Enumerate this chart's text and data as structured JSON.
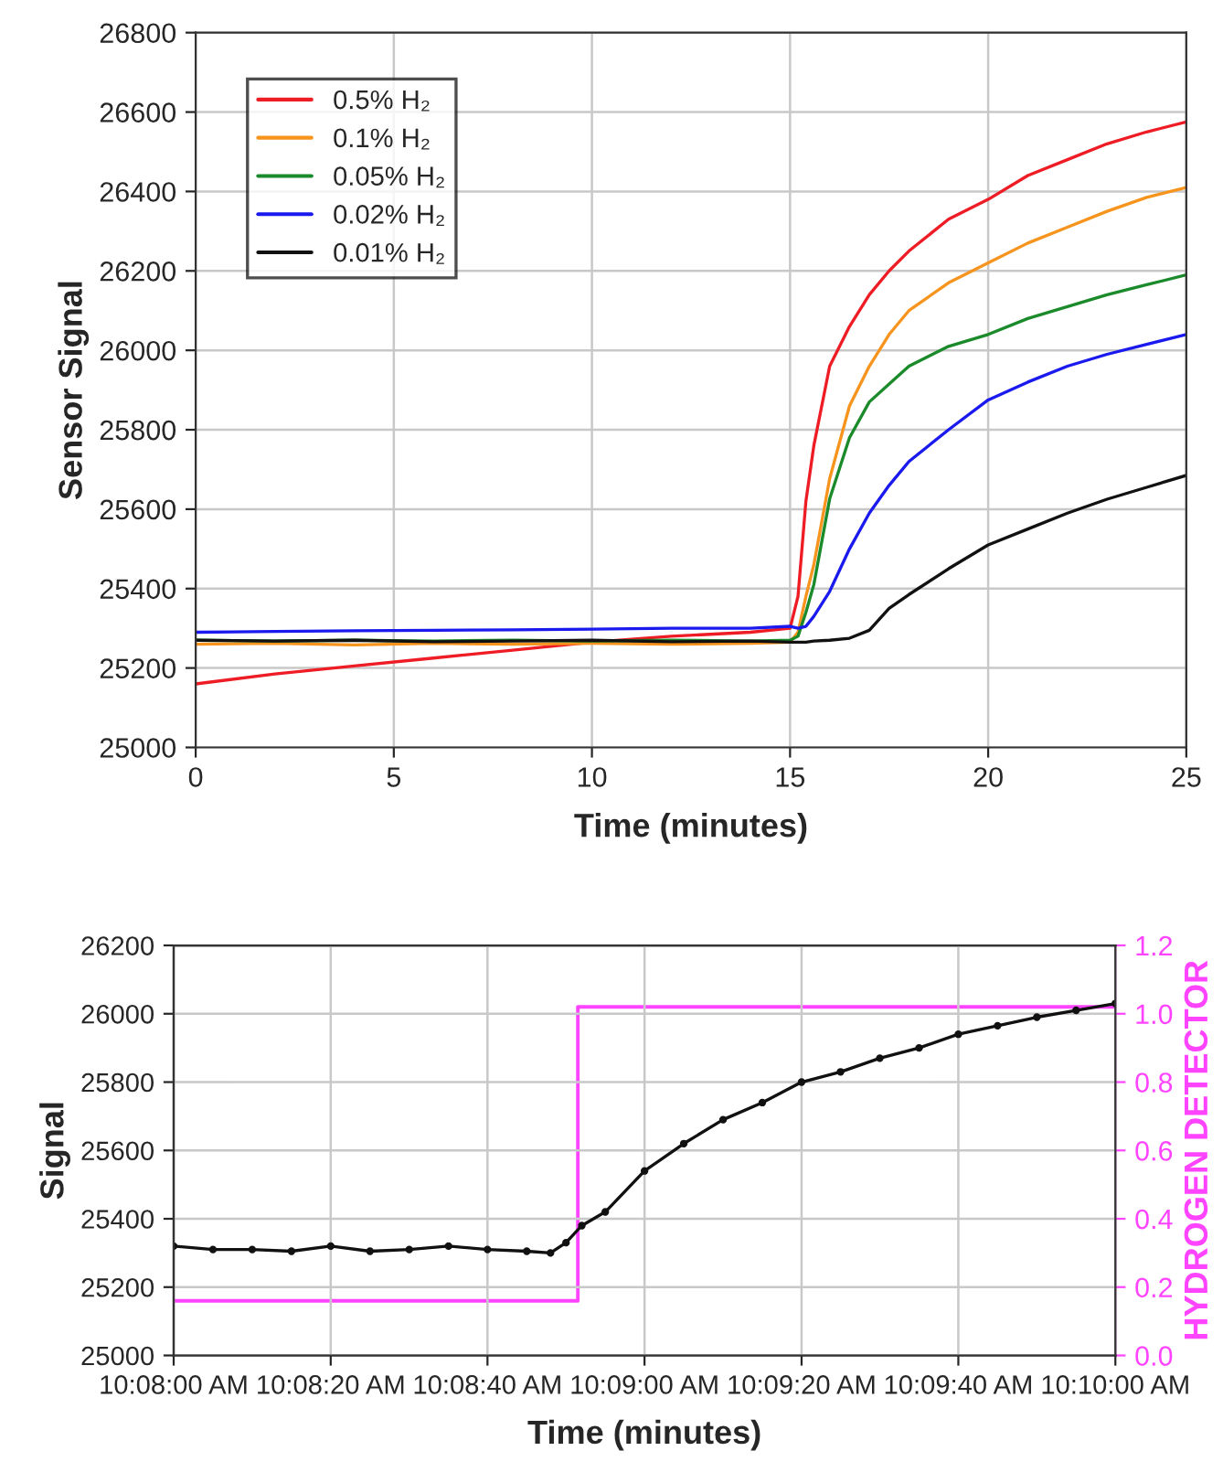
{
  "chart_data": [
    {
      "type": "line",
      "xlabel": "Time (minutes)",
      "ylabel": "Sensor Signal",
      "xlim": [
        0,
        25
      ],
      "ylim": [
        25000,
        26800
      ],
      "xticks": [
        0,
        5,
        10,
        15,
        20,
        25
      ],
      "yticks": [
        25000,
        25200,
        25400,
        25600,
        25800,
        26000,
        26200,
        26400,
        26600,
        26800
      ],
      "grid": true,
      "legend": "top left",
      "marker": "none",
      "line_style": "solid",
      "x": [
        0,
        2,
        4,
        6,
        8,
        10,
        12,
        14,
        15,
        15.2,
        15.4,
        15.6,
        16,
        16.5,
        17,
        17.5,
        18,
        19,
        20,
        21,
        22,
        23,
        24,
        25
      ],
      "series": [
        {
          "name": "0.5% H₂",
          "color": "#ee1c24",
          "values": [
            25160,
            25185,
            25205,
            25225,
            25245,
            25265,
            25280,
            25290,
            25300,
            25380,
            25620,
            25760,
            25960,
            26060,
            26140,
            26200,
            26250,
            26330,
            26380,
            26440,
            26480,
            26520,
            26550,
            26575
          ]
        },
        {
          "name": "0.1% H₂",
          "color": "#f7941d",
          "values": [
            25260,
            25262,
            25258,
            25262,
            25260,
            25262,
            25260,
            25262,
            25265,
            25290,
            25380,
            25460,
            25677,
            25860,
            25960,
            26040,
            26100,
            26170,
            26220,
            26270,
            26310,
            26350,
            26385,
            26410
          ]
        },
        {
          "name": "0.05% H₂",
          "color": "#1a8a2a",
          "values": [
            25270,
            25268,
            25270,
            25268,
            25270,
            25268,
            25270,
            25268,
            25270,
            25280,
            25340,
            25410,
            25626,
            25780,
            25870,
            25915,
            25960,
            26010,
            26040,
            26080,
            26110,
            26140,
            26165,
            26190
          ]
        },
        {
          "name": "0.02% H₂",
          "color": "#1a1aee",
          "values": [
            25290,
            25292,
            25294,
            25295,
            25296,
            25298,
            25300,
            25300,
            25305,
            25300,
            25305,
            25330,
            25393,
            25500,
            25590,
            25660,
            25720,
            25800,
            25875,
            25920,
            25960,
            25990,
            26015,
            26040
          ]
        },
        {
          "name": "0.01% H₂",
          "color": "#111111",
          "values": [
            25270,
            25268,
            25270,
            25266,
            25268,
            25270,
            25266,
            25268,
            25265,
            25265,
            25265,
            25268,
            25270,
            25275,
            25295,
            25350,
            25385,
            25450,
            25510,
            25550,
            25590,
            25625,
            25655,
            25685
          ]
        }
      ]
    },
    {
      "type": "line",
      "xlabel": "Time (minutes)",
      "ylabel": "Signal",
      "y2label": "HYDROGEN DETECTOR",
      "xlim": [
        10.13333,
        10.16667
      ],
      "ylim": [
        25000,
        26200
      ],
      "y2lim": [
        0,
        1.2
      ],
      "xticks": [
        {
          "value": 10.13333,
          "label": "10:08:00 AM"
        },
        {
          "value": 10.13889,
          "label": "10:08:20 AM"
        },
        {
          "value": 10.14444,
          "label": "10:08:40 AM"
        },
        {
          "value": 10.15,
          "label": "10:09:00 AM"
        },
        {
          "value": 10.15556,
          "label": "10:09:20 AM"
        },
        {
          "value": 10.16111,
          "label": "10:09:40 AM"
        },
        {
          "value": 10.16667,
          "label": "10:10:00 AM"
        }
      ],
      "yticks": [
        25000,
        25200,
        25400,
        25600,
        25800,
        26000,
        26200
      ],
      "y2ticks": [
        {
          "value": 0,
          "label": "0.0"
        },
        {
          "value": 0.2,
          "label": "0.2"
        },
        {
          "value": 0.4,
          "label": "0.4"
        },
        {
          "value": 0.6,
          "label": "0.6"
        },
        {
          "value": 0.8,
          "label": "0.8"
        },
        {
          "value": 1.0,
          "label": "1.0"
        },
        {
          "value": 1.2,
          "label": "1.2"
        }
      ],
      "grid": true,
      "legend": false,
      "series": [
        {
          "type": "line",
          "marker": "circle",
          "color": "#111111",
          "x": [
            10.13333,
            10.13472,
            10.13611,
            10.1375,
            10.13889,
            10.14028,
            10.14167,
            10.14306,
            10.14444,
            10.14583,
            10.14667,
            10.14722,
            10.14778,
            10.14861,
            10.15,
            10.15139,
            10.15278,
            10.15417,
            10.15556,
            10.15694,
            10.15833,
            10.15972,
            10.16111,
            10.1625,
            10.16389,
            10.16528,
            10.16667
          ],
          "values": [
            25320,
            25310,
            25310,
            25305,
            25320,
            25305,
            25310,
            25320,
            25310,
            25305,
            25300,
            25330,
            25380,
            25420,
            25540,
            25620,
            25690,
            25740,
            25800,
            25830,
            25870,
            25900,
            25940,
            25965,
            25990,
            26010,
            26030
          ]
        },
        {
          "type": "step",
          "axis": "y2",
          "marker": "none",
          "color": "#ff44ff",
          "x": [
            10.13333,
            10.14764,
            10.16667
          ],
          "values": [
            0.16,
            1.02,
            1.02
          ]
        }
      ]
    }
  ]
}
